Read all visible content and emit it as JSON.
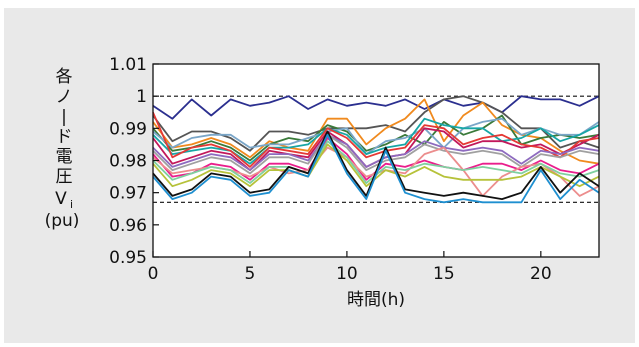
{
  "chart_data": {
    "type": "line",
    "ylabel_lines": [
      "各",
      "ノ",
      "|",
      "ド",
      "電",
      "圧"
    ],
    "ylabel_symbol": "V",
    "ylabel_subscript": "i",
    "ylabel_unit": "(pu)",
    "xlabel": "時間(h)",
    "xlim": [
      0,
      23
    ],
    "ylim": [
      0.95,
      1.01
    ],
    "xticks": [
      0,
      5,
      10,
      15,
      20
    ],
    "xtick_labels": [
      "0",
      "5",
      "10",
      "15",
      "20"
    ],
    "yticks": [
      0.95,
      0.96,
      0.97,
      0.98,
      0.99,
      1.0,
      1.01
    ],
    "ytick_labels": [
      "0.95",
      "0.96",
      "0.97",
      "0.98",
      "0.99",
      "1",
      "1.01"
    ],
    "reference_lines": [
      1.0,
      0.967
    ],
    "grid": false,
    "x": [
      0,
      1,
      2,
      3,
      4,
      5,
      6,
      7,
      8,
      9,
      10,
      11,
      12,
      13,
      14,
      15,
      16,
      17,
      18,
      19,
      20,
      21,
      22,
      23
    ],
    "series": [
      {
        "color": "#2b2f8f",
        "values": [
          0.997,
          0.993,
          0.999,
          0.994,
          0.999,
          0.997,
          0.998,
          1.0,
          0.996,
          0.999,
          0.997,
          0.998,
          0.997,
          0.999,
          0.996,
          0.999,
          0.997,
          0.998,
          0.995,
          1.0,
          0.999,
          0.999,
          0.997,
          1.0
        ]
      },
      {
        "color": "#555555",
        "values": [
          0.994,
          0.986,
          0.989,
          0.989,
          0.987,
          0.983,
          0.989,
          0.989,
          0.988,
          0.99,
          0.99,
          0.99,
          0.991,
          0.989,
          0.995,
          0.999,
          1.0,
          0.998,
          0.995,
          0.99,
          0.99,
          0.984,
          0.986,
          0.984
        ]
      },
      {
        "color": "#f08a1e",
        "values": [
          0.992,
          0.984,
          0.985,
          0.987,
          0.985,
          0.981,
          0.986,
          0.984,
          0.983,
          0.993,
          0.993,
          0.985,
          0.99,
          0.993,
          0.999,
          0.986,
          0.994,
          0.998,
          0.991,
          0.988,
          0.987,
          0.983,
          0.98,
          0.979
        ]
      },
      {
        "color": "#3a7a3a",
        "values": [
          0.99,
          0.983,
          0.984,
          0.986,
          0.984,
          0.98,
          0.985,
          0.987,
          0.986,
          0.991,
          0.989,
          0.983,
          0.985,
          0.988,
          0.985,
          0.992,
          0.988,
          0.99,
          0.994,
          0.985,
          0.987,
          0.988,
          0.987,
          0.988
        ]
      },
      {
        "color": "#7aa6c8",
        "values": [
          0.989,
          0.984,
          0.987,
          0.988,
          0.988,
          0.984,
          0.985,
          0.985,
          0.987,
          0.989,
          0.99,
          0.982,
          0.986,
          0.987,
          0.99,
          0.984,
          0.99,
          0.992,
          0.993,
          0.988,
          0.99,
          0.988,
          0.988,
          0.992
        ]
      },
      {
        "color": "#17a6a6",
        "values": [
          0.988,
          0.982,
          0.983,
          0.984,
          0.983,
          0.979,
          0.984,
          0.984,
          0.985,
          0.99,
          0.988,
          0.982,
          0.984,
          0.985,
          0.993,
          0.991,
          0.99,
          0.99,
          0.986,
          0.987,
          0.99,
          0.986,
          0.988,
          0.991
        ]
      },
      {
        "color": "#c2185b",
        "values": [
          0.987,
          0.979,
          0.981,
          0.983,
          0.982,
          0.977,
          0.983,
          0.982,
          0.981,
          0.989,
          0.985,
          0.978,
          0.981,
          0.982,
          0.99,
          0.989,
          0.984,
          0.986,
          0.986,
          0.984,
          0.985,
          0.982,
          0.985,
          0.988
        ]
      },
      {
        "color": "#e53935",
        "values": [
          0.995,
          0.981,
          0.984,
          0.985,
          0.983,
          0.978,
          0.984,
          0.983,
          0.982,
          0.99,
          0.987,
          0.981,
          0.983,
          0.984,
          0.991,
          0.99,
          0.985,
          0.987,
          0.988,
          0.985,
          0.984,
          0.981,
          0.986,
          0.987
        ]
      },
      {
        "color": "#8e6bbf",
        "values": [
          0.984,
          0.978,
          0.98,
          0.982,
          0.981,
          0.977,
          0.982,
          0.982,
          0.98,
          0.988,
          0.985,
          0.978,
          0.981,
          0.982,
          0.986,
          0.984,
          0.983,
          0.984,
          0.983,
          0.979,
          0.983,
          0.982,
          0.984,
          0.983
        ]
      },
      {
        "color": "#a0a0a0",
        "values": [
          0.983,
          0.977,
          0.979,
          0.981,
          0.98,
          0.976,
          0.981,
          0.981,
          0.979,
          0.988,
          0.984,
          0.977,
          0.98,
          0.981,
          0.985,
          0.983,
          0.982,
          0.983,
          0.982,
          0.978,
          0.982,
          0.981,
          0.983,
          0.982
        ]
      },
      {
        "color": "#e91e8c",
        "values": [
          0.982,
          0.975,
          0.976,
          0.979,
          0.978,
          0.974,
          0.979,
          0.979,
          0.977,
          0.987,
          0.982,
          0.974,
          0.979,
          0.978,
          0.98,
          0.978,
          0.977,
          0.979,
          0.979,
          0.977,
          0.98,
          0.977,
          0.976,
          0.979
        ]
      },
      {
        "color": "#ec8d8d",
        "values": [
          0.981,
          0.976,
          0.977,
          0.978,
          0.977,
          0.975,
          0.978,
          0.976,
          0.977,
          0.984,
          0.981,
          0.975,
          0.977,
          0.976,
          0.982,
          0.984,
          0.977,
          0.969,
          0.975,
          0.978,
          0.979,
          0.975,
          0.969,
          0.972
        ]
      },
      {
        "color": "#7fd0a0",
        "values": [
          0.98,
          0.974,
          0.976,
          0.978,
          0.977,
          0.973,
          0.978,
          0.978,
          0.976,
          0.986,
          0.981,
          0.973,
          0.978,
          0.977,
          0.979,
          0.978,
          0.977,
          0.978,
          0.977,
          0.976,
          0.979,
          0.976,
          0.975,
          0.977
        ]
      },
      {
        "color": "#b6c23a",
        "values": [
          0.979,
          0.972,
          0.974,
          0.977,
          0.976,
          0.972,
          0.977,
          0.977,
          0.975,
          0.985,
          0.98,
          0.972,
          0.977,
          0.975,
          0.978,
          0.975,
          0.974,
          0.974,
          0.974,
          0.975,
          0.978,
          0.975,
          0.972,
          0.975
        ]
      },
      {
        "color": "#111111",
        "values": [
          0.976,
          0.969,
          0.971,
          0.976,
          0.975,
          0.97,
          0.971,
          0.978,
          0.976,
          0.989,
          0.977,
          0.969,
          0.984,
          0.971,
          0.97,
          0.969,
          0.97,
          0.969,
          0.968,
          0.97,
          0.978,
          0.97,
          0.976,
          0.972
        ]
      },
      {
        "color": "#1e8fd0",
        "values": [
          0.975,
          0.968,
          0.97,
          0.975,
          0.974,
          0.969,
          0.97,
          0.977,
          0.975,
          0.988,
          0.976,
          0.968,
          0.983,
          0.97,
          0.968,
          0.967,
          0.968,
          0.967,
          0.967,
          0.967,
          0.977,
          0.968,
          0.974,
          0.97
        ]
      }
    ]
  }
}
